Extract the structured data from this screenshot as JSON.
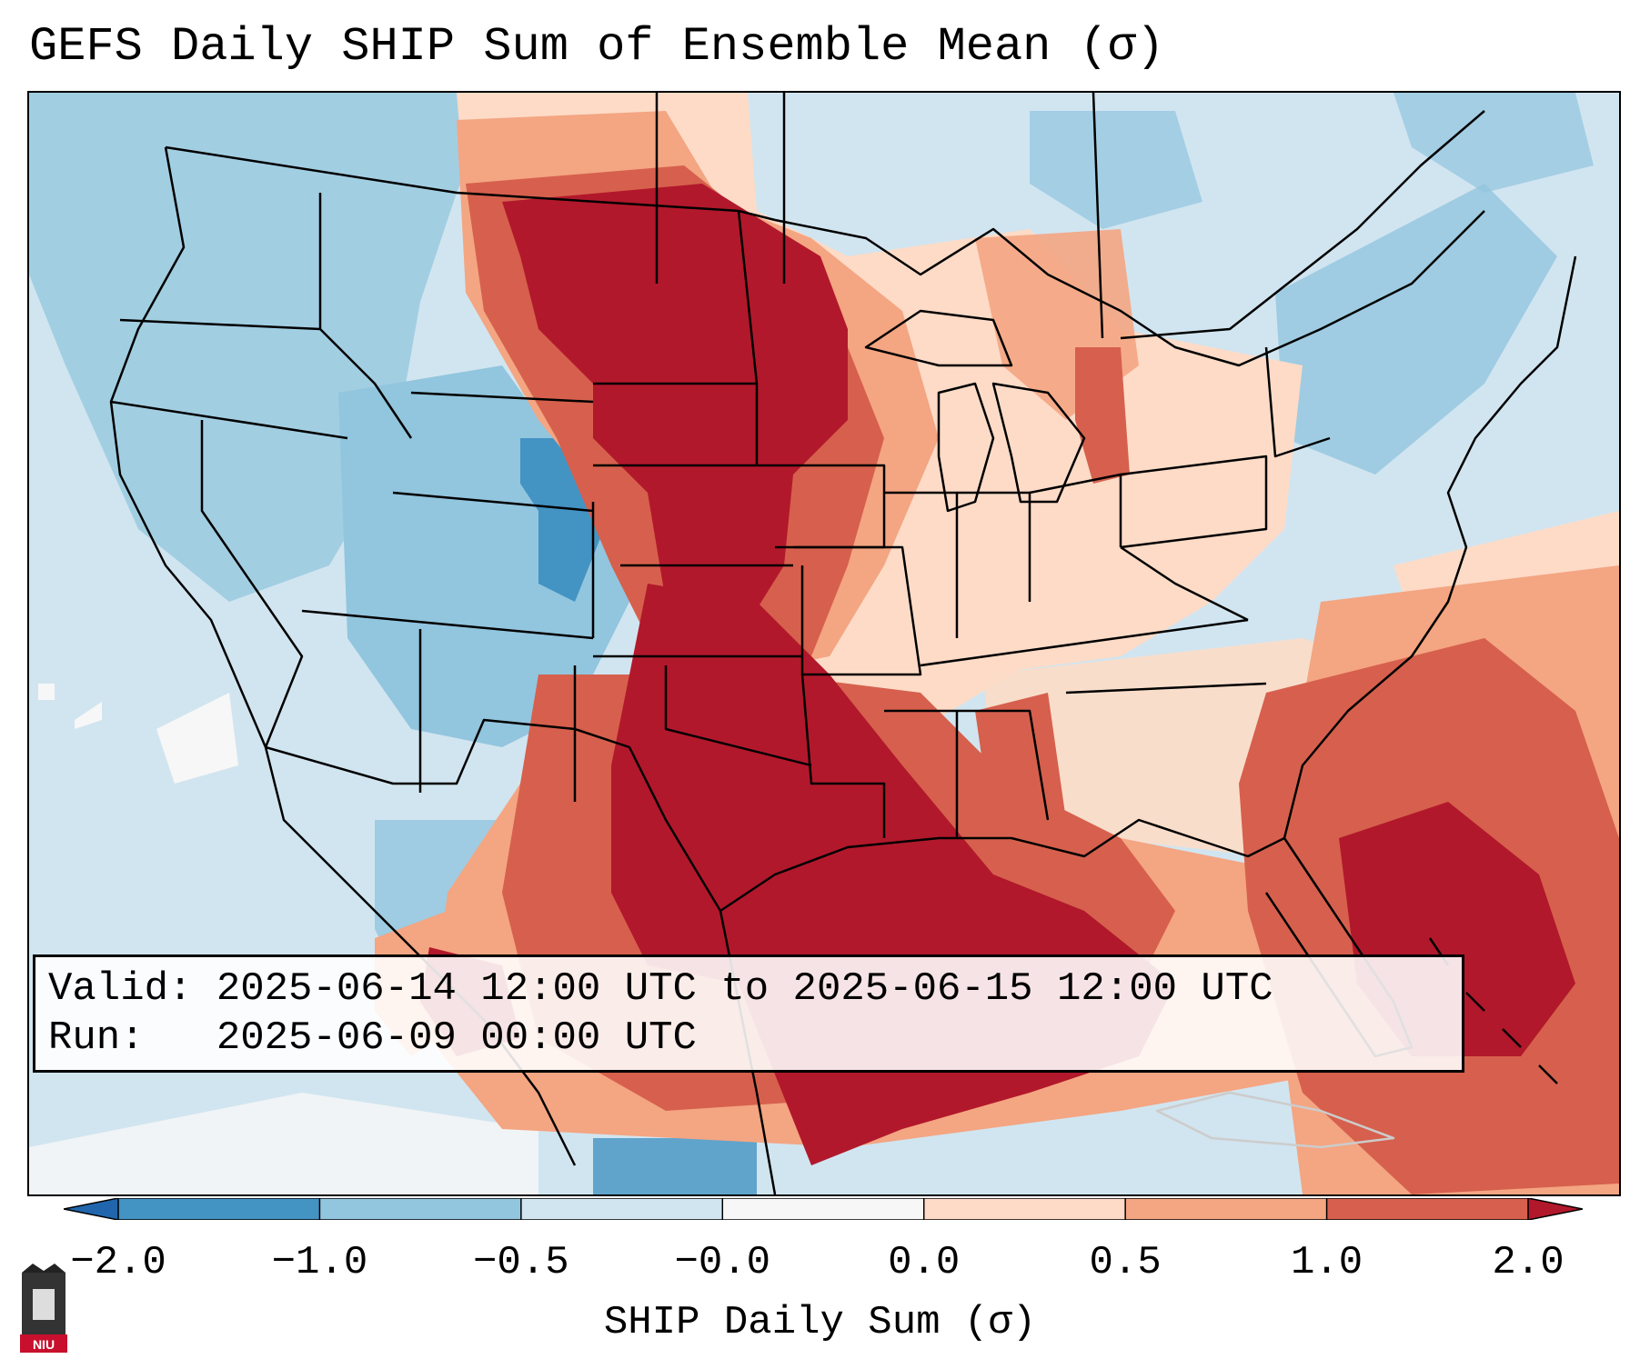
{
  "title": "GEFS Daily SHIP Sum of Ensemble Mean (σ)",
  "info": {
    "valid_label": "Valid:",
    "valid_value": "2025-06-14 12:00 UTC to 2025-06-15 12:00 UTC",
    "run_label": "Run:",
    "run_value": "2025-06-09 00:00 UTC"
  },
  "colorbar": {
    "label": "SHIP Daily Sum (σ)",
    "tick_labels": [
      "−2.0",
      "−1.0",
      "−0.5",
      "−0.0",
      "0.0",
      "0.5",
      "1.0",
      "2.0"
    ],
    "bins": [
      {
        "color": "#4393c3"
      },
      {
        "color": "#92c5de"
      },
      {
        "color": "#d1e5f0"
      },
      {
        "color": "#f7f7f7"
      },
      {
        "color": "#fddbc7"
      },
      {
        "color": "#f4a582"
      },
      {
        "color": "#d6604d"
      }
    ],
    "extend_low_color": "#2166ac",
    "extend_high_color": "#b2182b"
  },
  "palette": {
    "strong_neg": "#4393c3",
    "neg": "#92c5de",
    "weak_neg": "#d1e5f0",
    "neutral": "#f7f7f7",
    "weak_pos": "#fddbc7",
    "pos": "#f4a582",
    "strong_pos": "#d6604d",
    "extreme_pos": "#b2182b"
  },
  "logo": {
    "text": "NIU",
    "color": "#c8102e"
  }
}
